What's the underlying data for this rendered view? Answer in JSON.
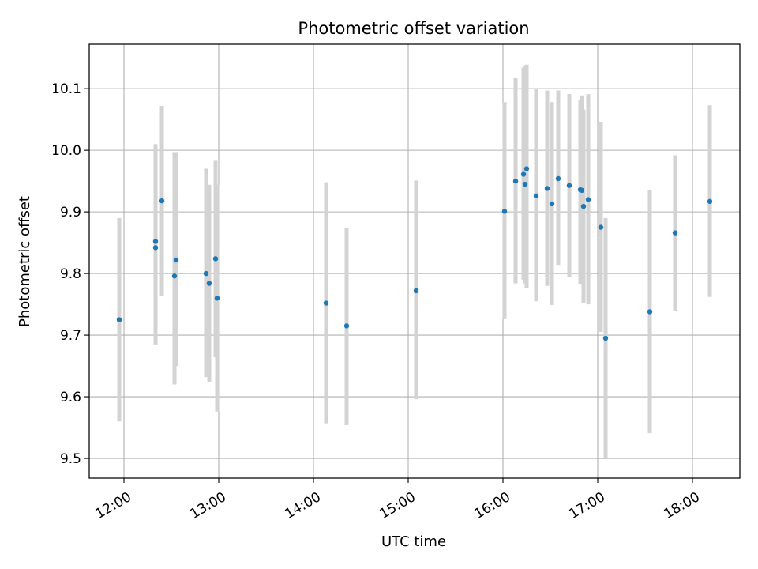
{
  "chart_data": {
    "type": "scatter",
    "title": "Photometric offset variation",
    "xlabel": "UTC time",
    "ylabel": "Photometric offset",
    "x_ticks": [
      "12:00",
      "13:00",
      "14:00",
      "15:00",
      "16:00",
      "17:00",
      "18:00"
    ],
    "y_ticks": [
      "9.5",
      "9.6",
      "9.7",
      "9.8",
      "9.9",
      "10.0",
      "10.1"
    ],
    "xlim": [
      "11:38",
      "18:30"
    ],
    "ylim": [
      9.468,
      10.172
    ],
    "grid": true,
    "colors": {
      "point": "#1f77b4",
      "errorbar": "#d3d3d3",
      "grid": "#b0b0b0"
    },
    "points": [
      {
        "x": "11:57",
        "y": 9.725,
        "ylow": 9.56,
        "yhigh": 9.89
      },
      {
        "x": "12:20",
        "y": 9.852,
        "ylow": 9.685,
        "yhigh": 10.01
      },
      {
        "x": "12:20",
        "y": 9.842,
        "ylow": 9.685,
        "yhigh": 10.01
      },
      {
        "x": "12:24",
        "y": 9.918,
        "ylow": 9.763,
        "yhigh": 10.072
      },
      {
        "x": "12:32",
        "y": 9.796,
        "ylow": 9.62,
        "yhigh": 9.997
      },
      {
        "x": "12:33",
        "y": 9.822,
        "ylow": 9.65,
        "yhigh": 9.997
      },
      {
        "x": "12:52",
        "y": 9.8,
        "ylow": 9.632,
        "yhigh": 9.97
      },
      {
        "x": "12:54",
        "y": 9.784,
        "ylow": 9.624,
        "yhigh": 9.944
      },
      {
        "x": "12:58",
        "y": 9.824,
        "ylow": 9.664,
        "yhigh": 9.983
      },
      {
        "x": "12:59",
        "y": 9.76,
        "ylow": 9.576,
        "yhigh": 9.944
      },
      {
        "x": "14:08",
        "y": 9.752,
        "ylow": 9.557,
        "yhigh": 9.948
      },
      {
        "x": "14:21",
        "y": 9.715,
        "ylow": 9.554,
        "yhigh": 9.874
      },
      {
        "x": "15:05",
        "y": 9.772,
        "ylow": 9.596,
        "yhigh": 9.951
      },
      {
        "x": "16:01",
        "y": 9.901,
        "ylow": 9.726,
        "yhigh": 10.078
      },
      {
        "x": "16:08",
        "y": 9.95,
        "ylow": 9.784,
        "yhigh": 10.117
      },
      {
        "x": "16:13",
        "y": 9.961,
        "ylow": 9.79,
        "yhigh": 10.134
      },
      {
        "x": "16:14",
        "y": 9.945,
        "ylow": 9.784,
        "yhigh": 10.137
      },
      {
        "x": "16:15",
        "y": 9.97,
        "ylow": 9.777,
        "yhigh": 10.139
      },
      {
        "x": "16:21",
        "y": 9.926,
        "ylow": 9.755,
        "yhigh": 10.099
      },
      {
        "x": "16:28",
        "y": 9.938,
        "ylow": 9.78,
        "yhigh": 10.097
      },
      {
        "x": "16:31",
        "y": 9.913,
        "ylow": 9.749,
        "yhigh": 10.078
      },
      {
        "x": "16:35",
        "y": 9.954,
        "ylow": 9.814,
        "yhigh": 10.097
      },
      {
        "x": "16:42",
        "y": 9.943,
        "ylow": 9.795,
        "yhigh": 10.091
      },
      {
        "x": "16:49",
        "y": 9.936,
        "ylow": 9.782,
        "yhigh": 10.082
      },
      {
        "x": "16:50",
        "y": 9.935,
        "ylow": 9.786,
        "yhigh": 10.089
      },
      {
        "x": "16:51",
        "y": 9.909,
        "ylow": 9.752,
        "yhigh": 10.066
      },
      {
        "x": "16:54",
        "y": 9.92,
        "ylow": 9.75,
        "yhigh": 10.091
      },
      {
        "x": "17:02",
        "y": 9.875,
        "ylow": 9.705,
        "yhigh": 10.046
      },
      {
        "x": "17:05",
        "y": 9.695,
        "ylow": 9.5,
        "yhigh": 9.89
      },
      {
        "x": "17:33",
        "y": 9.738,
        "ylow": 9.541,
        "yhigh": 9.936
      },
      {
        "x": "17:49",
        "y": 9.866,
        "ylow": 9.739,
        "yhigh": 9.992
      },
      {
        "x": "18:11",
        "y": 9.917,
        "ylow": 9.762,
        "yhigh": 10.073
      }
    ]
  }
}
